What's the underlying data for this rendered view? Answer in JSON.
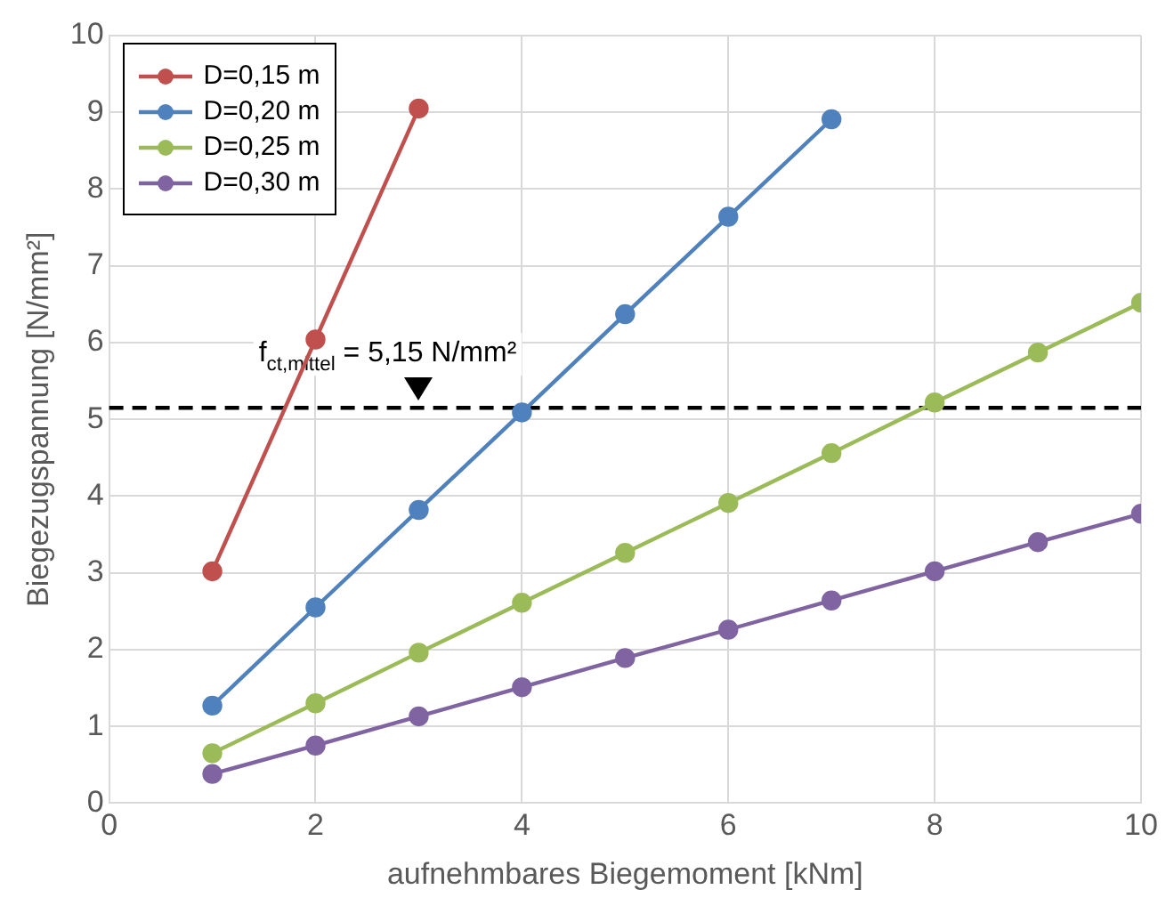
{
  "chart_data": {
    "type": "line",
    "xlabel": "aufnehmbares Biegemoment [kNm]",
    "ylabel": "Biegezugspannung [N/mm²]",
    "x": [
      1,
      2,
      3,
      4,
      5,
      6,
      7,
      8,
      9,
      10
    ],
    "series": [
      {
        "name": "D=0,15 m",
        "color": "#c0504d",
        "values": [
          3.02,
          6.04,
          9.05,
          null,
          null,
          null,
          null,
          null,
          null,
          null
        ]
      },
      {
        "name": "D=0,20 m",
        "color": "#4f81bd",
        "values": [
          1.27,
          2.55,
          3.82,
          5.09,
          6.37,
          7.64,
          8.91,
          null,
          null,
          null
        ]
      },
      {
        "name": "D=0,25 m",
        "color": "#9bbb59",
        "values": [
          0.65,
          1.3,
          1.96,
          2.61,
          3.26,
          3.91,
          4.56,
          5.22,
          5.87,
          6.52
        ]
      },
      {
        "name": "D=0,30 m",
        "color": "#8064a2",
        "values": [
          0.38,
          0.75,
          1.13,
          1.51,
          1.89,
          2.26,
          2.64,
          3.02,
          3.4,
          3.77
        ]
      }
    ],
    "xlim": [
      0,
      10
    ],
    "xticks": [
      0,
      2,
      4,
      6,
      8,
      10
    ],
    "ylim": [
      0,
      10
    ],
    "yticks": [
      0,
      1,
      2,
      3,
      4,
      5,
      6,
      7,
      8,
      9,
      10
    ],
    "grid": true,
    "legend": "top left",
    "marker": "circle",
    "line_style": "solid",
    "ref_lines": [
      {
        "axis": "y",
        "value": 5.15,
        "label": "f$_{ct,mittel}$ = 5,15 N/mm²",
        "color": "#000000",
        "line_style": "dashed"
      }
    ]
  }
}
